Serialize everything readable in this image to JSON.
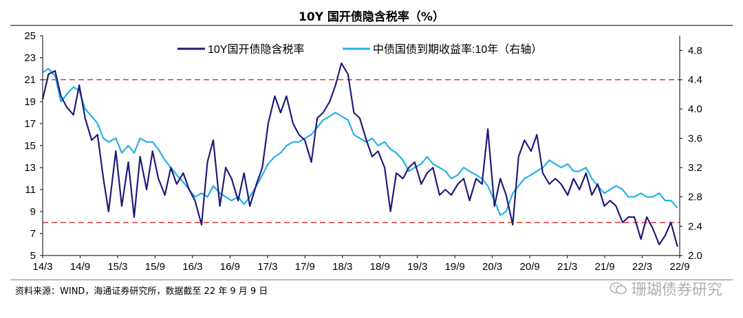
{
  "title": "10Y 国开债隐含税率（%）",
  "source": "资料来源：WIND，海通证券研究所，数据截至 22 年 9 月 9 日",
  "watermark": "珊瑚债券研究",
  "colors": {
    "series_left": "#1f1a7a",
    "series_right": "#21b0e6",
    "reference": "#e03030",
    "axis": "#000000"
  },
  "chart_data": {
    "type": "line",
    "title": "10Y 国开债隐含税率（%）",
    "x_ticks": [
      "14/3",
      "14/9",
      "15/3",
      "15/9",
      "16/3",
      "16/9",
      "17/3",
      "17/9",
      "18/3",
      "18/9",
      "19/3",
      "19/9",
      "20/3",
      "20/9",
      "21/3",
      "21/9",
      "22/3",
      "22/9"
    ],
    "x_range": [
      2014.0,
      2022.7
    ],
    "left_axis": {
      "range": [
        5,
        25
      ],
      "ticks": [
        5,
        7,
        9,
        11,
        13,
        15,
        17,
        19,
        21,
        23,
        25
      ]
    },
    "right_axis": {
      "range": [
        2.0,
        5.0
      ],
      "ticks": [
        "2.0",
        "2.4",
        "2.8",
        "3.2",
        "3.6",
        "4.0",
        "4.4",
        "4.8"
      ]
    },
    "reference_lines": [
      {
        "axis": "left",
        "value": 21
      },
      {
        "axis": "left",
        "value": 8
      }
    ],
    "legend": {
      "placement": "top-center",
      "entries": [
        "10Y国开债隐含税率",
        "中债国债到期收益率:10年（右轴）"
      ]
    },
    "series": [
      {
        "name": "10Y国开债隐含税率",
        "axis": "left",
        "x": [
          2014.0,
          2014.08,
          2014.17,
          2014.25,
          2014.33,
          2014.42,
          2014.5,
          2014.58,
          2014.67,
          2014.75,
          2014.83,
          2014.9,
          2015.0,
          2015.08,
          2015.17,
          2015.25,
          2015.33,
          2015.42,
          2015.5,
          2015.58,
          2015.67,
          2015.75,
          2015.83,
          2015.92,
          2016.0,
          2016.08,
          2016.17,
          2016.25,
          2016.33,
          2016.42,
          2016.5,
          2016.58,
          2016.67,
          2016.75,
          2016.83,
          2016.92,
          2017.0,
          2017.08,
          2017.17,
          2017.25,
          2017.33,
          2017.42,
          2017.5,
          2017.58,
          2017.67,
          2017.75,
          2017.83,
          2017.92,
          2018.0,
          2018.08,
          2018.17,
          2018.25,
          2018.33,
          2018.42,
          2018.5,
          2018.58,
          2018.67,
          2018.75,
          2018.83,
          2018.92,
          2019.0,
          2019.08,
          2019.17,
          2019.25,
          2019.33,
          2019.42,
          2019.5,
          2019.58,
          2019.67,
          2019.75,
          2019.83,
          2019.92,
          2020.0,
          2020.08,
          2020.17,
          2020.25,
          2020.33,
          2020.42,
          2020.5,
          2020.58,
          2020.67,
          2020.75,
          2020.83,
          2020.92,
          2021.0,
          2021.08,
          2021.17,
          2021.25,
          2021.33,
          2021.42,
          2021.5,
          2021.58,
          2021.67,
          2021.75,
          2021.83,
          2021.92,
          2022.0,
          2022.08,
          2022.17,
          2022.25,
          2022.33,
          2022.42,
          2022.5,
          2022.58,
          2022.67
        ],
        "values": [
          19.2,
          21.5,
          21.8,
          19.5,
          18.5,
          17.8,
          20.5,
          17.5,
          15.5,
          16.0,
          12.0,
          9.0,
          14.5,
          9.5,
          13.5,
          8.5,
          14.0,
          11.0,
          14.5,
          12.0,
          10.5,
          13.0,
          11.5,
          12.5,
          11.0,
          10.0,
          7.8,
          13.5,
          15.5,
          9.5,
          13.0,
          12.0,
          10.0,
          12.5,
          9.5,
          11.5,
          13.0,
          17.0,
          19.5,
          18.0,
          19.5,
          17.0,
          16.0,
          15.5,
          13.5,
          17.5,
          18.0,
          19.0,
          20.5,
          22.5,
          21.5,
          18.0,
          17.5,
          15.5,
          14.0,
          14.5,
          13.0,
          9.0,
          12.5,
          12.0,
          13.0,
          13.5,
          11.5,
          12.5,
          13.0,
          10.5,
          11.0,
          10.5,
          11.5,
          12.0,
          10.0,
          12.0,
          11.5,
          16.5,
          9.5,
          12.0,
          10.5,
          7.8,
          14.0,
          15.5,
          14.5,
          16.0,
          12.5,
          11.5,
          12.0,
          11.5,
          10.5,
          12.0,
          11.0,
          12.5,
          10.5,
          11.5,
          9.5,
          10.0,
          9.5,
          8.0,
          8.5,
          8.5,
          6.5,
          8.5,
          7.5,
          6.0,
          6.8,
          8.0,
          5.8
        ]
      },
      {
        "name": "中债国债到期收益率:10年（右轴）",
        "axis": "right",
        "x": [
          2014.0,
          2014.08,
          2014.17,
          2014.25,
          2014.33,
          2014.42,
          2014.5,
          2014.58,
          2014.67,
          2014.75,
          2014.83,
          2014.9,
          2015.0,
          2015.08,
          2015.17,
          2015.25,
          2015.33,
          2015.42,
          2015.5,
          2015.58,
          2015.67,
          2015.75,
          2015.83,
          2015.92,
          2016.0,
          2016.08,
          2016.17,
          2016.25,
          2016.33,
          2016.42,
          2016.5,
          2016.58,
          2016.67,
          2016.75,
          2016.83,
          2016.92,
          2017.0,
          2017.08,
          2017.17,
          2017.25,
          2017.33,
          2017.42,
          2017.5,
          2017.58,
          2017.67,
          2017.75,
          2017.83,
          2017.92,
          2018.0,
          2018.08,
          2018.17,
          2018.25,
          2018.33,
          2018.42,
          2018.5,
          2018.58,
          2018.67,
          2018.75,
          2018.83,
          2018.92,
          2019.0,
          2019.08,
          2019.17,
          2019.25,
          2019.33,
          2019.42,
          2019.5,
          2019.58,
          2019.67,
          2019.75,
          2019.83,
          2019.92,
          2020.0,
          2020.08,
          2020.17,
          2020.25,
          2020.33,
          2020.42,
          2020.5,
          2020.58,
          2020.67,
          2020.75,
          2020.83,
          2020.92,
          2021.0,
          2021.08,
          2021.17,
          2021.25,
          2021.33,
          2021.42,
          2021.5,
          2021.58,
          2021.67,
          2021.75,
          2021.83,
          2021.92,
          2022.0,
          2022.08,
          2022.17,
          2022.25,
          2022.33,
          2022.42,
          2022.5,
          2022.58,
          2022.67
        ],
        "values": [
          4.5,
          4.55,
          4.45,
          4.1,
          4.2,
          4.3,
          4.25,
          4.0,
          3.9,
          3.8,
          3.6,
          3.55,
          3.6,
          3.4,
          3.5,
          3.4,
          3.6,
          3.55,
          3.55,
          3.45,
          3.3,
          3.2,
          3.1,
          3.0,
          2.9,
          2.8,
          2.85,
          2.8,
          2.95,
          2.85,
          2.8,
          2.75,
          2.8,
          2.7,
          2.8,
          2.95,
          3.1,
          3.25,
          3.35,
          3.4,
          3.5,
          3.55,
          3.55,
          3.6,
          3.65,
          3.75,
          3.85,
          3.9,
          3.95,
          3.9,
          3.85,
          3.65,
          3.6,
          3.55,
          3.6,
          3.5,
          3.55,
          3.45,
          3.4,
          3.3,
          3.15,
          3.2,
          3.25,
          3.35,
          3.25,
          3.2,
          3.15,
          3.05,
          3.1,
          3.2,
          3.15,
          3.1,
          3.05,
          2.95,
          2.75,
          2.55,
          2.6,
          2.85,
          2.95,
          3.05,
          3.1,
          3.15,
          3.2,
          3.3,
          3.25,
          3.2,
          3.25,
          3.15,
          3.15,
          3.2,
          3.05,
          2.95,
          2.85,
          2.9,
          2.95,
          2.9,
          2.8,
          2.8,
          2.85,
          2.8,
          2.8,
          2.85,
          2.75,
          2.75,
          2.65
        ]
      }
    ]
  }
}
